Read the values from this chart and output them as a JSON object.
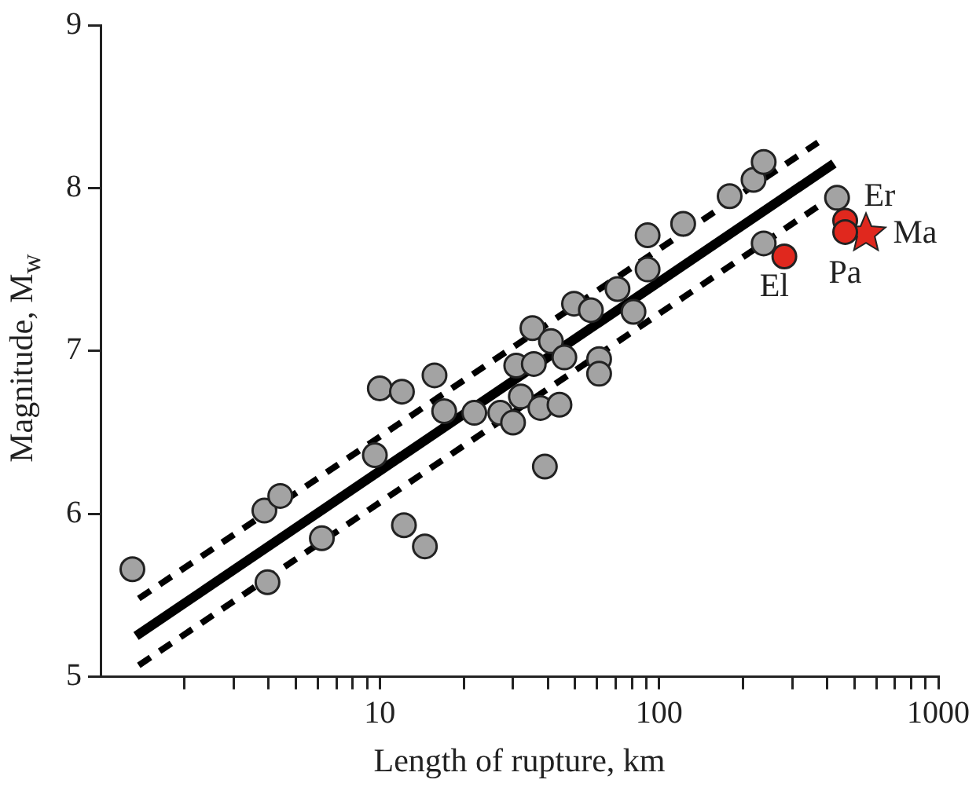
{
  "chart_data": {
    "type": "scatter",
    "xlabel": "Length of rupture, km",
    "ylabel": "Magnitude, M$_{w}$",
    "log": "x",
    "xlim": [
      1,
      1000
    ],
    "ylim": [
      5,
      9
    ],
    "xticks": [
      {
        "value": 2,
        "label": null
      },
      {
        "value": 3,
        "label": null
      },
      {
        "value": 4,
        "label": null
      },
      {
        "value": 5,
        "label": null
      },
      {
        "value": 6,
        "label": null
      },
      {
        "value": 7,
        "label": null
      },
      {
        "value": 8,
        "label": null
      },
      {
        "value": 9,
        "label": null
      },
      10,
      {
        "value": 20,
        "label": null
      },
      {
        "value": 30,
        "label": null
      },
      {
        "value": 40,
        "label": null
      },
      {
        "value": 50,
        "label": null
      },
      {
        "value": 60,
        "label": null
      },
      {
        "value": 70,
        "label": null
      },
      {
        "value": 80,
        "label": null
      },
      {
        "value": 90,
        "label": null
      },
      100,
      {
        "value": 200,
        "label": null
      },
      {
        "value": 300,
        "label": null
      },
      {
        "value": 400,
        "label": null
      },
      {
        "value": 500,
        "label": null
      },
      {
        "value": 600,
        "label": null
      },
      {
        "value": 700,
        "label": null
      },
      {
        "value": 800,
        "label": null
      },
      {
        "value": 900,
        "label": null
      },
      1000
    ],
    "yticks": [
      5,
      6,
      7,
      8,
      9
    ],
    "grid": false,
    "legend": false,
    "series": [
      {
        "type": "scatter",
        "color": "#a3a3a3",
        "marker": "circle",
        "x": [
          1.3,
          3.86,
          4.4,
          3.96,
          6.2,
          9.6,
          10,
          12,
          12.2,
          14.5,
          15.7,
          17,
          21.8,
          27,
          30,
          30.8,
          32,
          37.6,
          44,
          39,
          35.6,
          35.2,
          41,
          45.8,
          61,
          61,
          49.6,
          57,
          71,
          81,
          91,
          91,
          122,
          179,
          218,
          237,
          237,
          434
        ],
        "values": [
          5.66,
          6.02,
          6.11,
          5.58,
          5.85,
          6.36,
          6.77,
          6.75,
          5.93,
          5.8,
          6.85,
          6.63,
          6.62,
          6.62,
          6.56,
          6.91,
          6.72,
          6.65,
          6.67,
          6.29,
          6.92,
          7.14,
          7.06,
          6.96,
          6.95,
          6.86,
          7.29,
          7.25,
          7.38,
          7.24,
          7.71,
          7.5,
          7.78,
          7.95,
          8.05,
          8.16,
          7.66,
          7.94
        ]
      },
      {
        "type": "scatter",
        "color": "#e0281e",
        "marker": "circle",
        "x": [
          281,
          464,
          464
        ],
        "values": [
          7.58,
          7.8,
          7.73
        ]
      },
      {
        "type": "scatter",
        "color": "#e0281e",
        "marker": "star",
        "x": [
          551
        ],
        "values": [
          7.72
        ]
      },
      {
        "type": "line",
        "color": "#000000",
        "line_style": "solid",
        "marker": "none",
        "x": [
          1.34,
          423
        ],
        "values": [
          5.25,
          8.15
        ]
      },
      {
        "type": "line",
        "color": "#000000",
        "line_style": "dashed",
        "marker": "none",
        "x": [
          1.37,
          371
        ],
        "values": [
          5.48,
          8.28
        ]
      },
      {
        "type": "line",
        "color": "#000000",
        "line_style": "dashed",
        "marker": "none",
        "x": [
          1.37,
          464
        ],
        "values": [
          5.07,
          8.0
        ]
      }
    ],
    "annotations": [
      {
        "text": "Er",
        "x": 464,
        "y": 7.8
      },
      {
        "text": "Ma",
        "x": 551,
        "y": 7.72
      },
      {
        "text": "Pa",
        "x": 464,
        "y": 7.73
      },
      {
        "text": "El",
        "x": 281,
        "y": 7.58
      }
    ]
  }
}
